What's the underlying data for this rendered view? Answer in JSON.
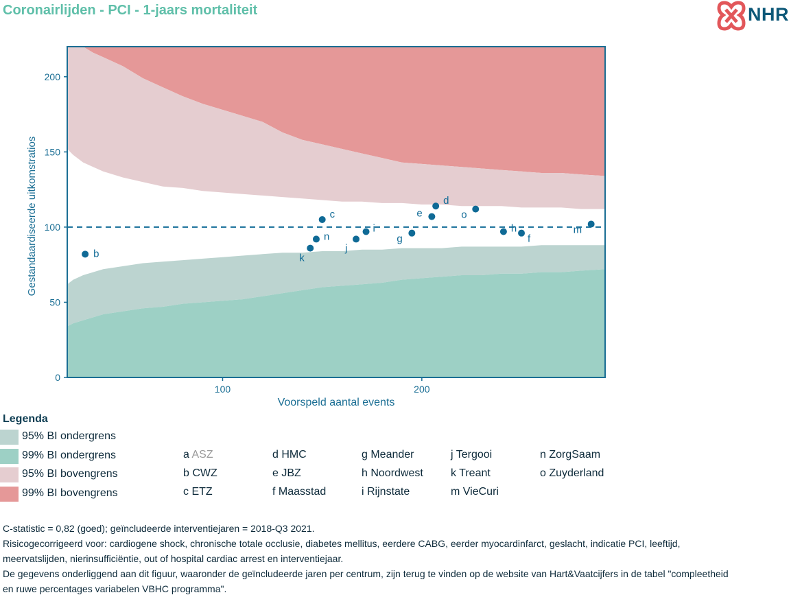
{
  "header": {
    "title": "Coronairlijden - PCI - 1-jaars mortaliteit",
    "logo_text": "NHR"
  },
  "colors": {
    "title": "#5fbfa9",
    "axis": "#1a6e94",
    "point": "#0f6a96",
    "ci95_lower": "#bcd4d0",
    "ci99_lower": "#9dd0c5",
    "ci95_upper": "#e5cdd0",
    "ci99_upper": "#e59898"
  },
  "chart_data": {
    "type": "scatter",
    "xlabel": "Voorspeld aantal events",
    "ylabel": "Gestandaardiseerde uitkomstratios",
    "xlim": [
      22,
      292
    ],
    "ylim": [
      0,
      220
    ],
    "xticks": [
      100,
      200
    ],
    "yticks": [
      0,
      50,
      100,
      150,
      200
    ],
    "reference_line": 100,
    "grid": false,
    "points": [
      {
        "label": "b",
        "x": 31,
        "y": 82
      },
      {
        "label": "k",
        "x": 144,
        "y": 86
      },
      {
        "label": "n",
        "x": 147,
        "y": 92
      },
      {
        "label": "c",
        "x": 150,
        "y": 105
      },
      {
        "label": "j",
        "x": 167,
        "y": 92
      },
      {
        "label": "i",
        "x": 172,
        "y": 97
      },
      {
        "label": "g",
        "x": 195,
        "y": 96
      },
      {
        "label": "e",
        "x": 205,
        "y": 107
      },
      {
        "label": "d",
        "x": 207,
        "y": 114
      },
      {
        "label": "o",
        "x": 227,
        "y": 112
      },
      {
        "label": "h",
        "x": 241,
        "y": 97
      },
      {
        "label": "f",
        "x": 250,
        "y": 96
      },
      {
        "label": "m",
        "x": 285,
        "y": 102
      }
    ],
    "bands": {
      "x": [
        22,
        25,
        30,
        35,
        40,
        50,
        60,
        70,
        80,
        90,
        100,
        110,
        120,
        130,
        140,
        150,
        160,
        170,
        180,
        190,
        200,
        210,
        220,
        230,
        240,
        250,
        260,
        270,
        280,
        292
      ],
      "upper_99": [
        220,
        220,
        220,
        216,
        213,
        207,
        199,
        193,
        187,
        182,
        178,
        174,
        170,
        163,
        158,
        155,
        152,
        149,
        146,
        143,
        142,
        141,
        140,
        139,
        138,
        137,
        136,
        136,
        135,
        134
      ],
      "upper_95": [
        152,
        148,
        143,
        140,
        137,
        133,
        130,
        127,
        126,
        124,
        123,
        122,
        121,
        120,
        119,
        118,
        117,
        117,
        116,
        116,
        115,
        115,
        114,
        114,
        114,
        113,
        113,
        113,
        112,
        112
      ],
      "lower_95": [
        62,
        65,
        68,
        70,
        72,
        74,
        76,
        77,
        78,
        79,
        80,
        81,
        82,
        83,
        83,
        84,
        84,
        85,
        85,
        86,
        86,
        86,
        87,
        87,
        87,
        87,
        88,
        88,
        88,
        88
      ],
      "lower_99": [
        34,
        36,
        38,
        40,
        42,
        44,
        46,
        47,
        49,
        50,
        51,
        52,
        54,
        56,
        58,
        60,
        61,
        62,
        63,
        65,
        66,
        67,
        68,
        68,
        69,
        69,
        70,
        70,
        71,
        72
      ]
    }
  },
  "legend": {
    "title": "Legenda",
    "items": [
      {
        "label": "95% BI ondergrens",
        "color": "#bcd4d0"
      },
      {
        "label": "99% BI ondergrens",
        "color": "#9dd0c5"
      },
      {
        "label": "95% BI bovengrens",
        "color": "#e5cdd0"
      },
      {
        "label": "99% BI bovengrens",
        "color": "#e59898"
      }
    ]
  },
  "centers": [
    {
      "letter": "a",
      "name": "ASZ",
      "muted": true
    },
    {
      "letter": "b",
      "name": "CWZ"
    },
    {
      "letter": "c",
      "name": "ETZ"
    },
    {
      "letter": "d",
      "name": "HMC"
    },
    {
      "letter": "e",
      "name": "JBZ"
    },
    {
      "letter": "f",
      "name": "Maasstad"
    },
    {
      "letter": "g",
      "name": "Meander"
    },
    {
      "letter": "h",
      "name": "Noordwest"
    },
    {
      "letter": "i",
      "name": "Rijnstate"
    },
    {
      "letter": "j",
      "name": "Tergooi"
    },
    {
      "letter": "k",
      "name": "Treant"
    },
    {
      "letter": "m",
      "name": "VieCuri"
    },
    {
      "letter": "n",
      "name": "ZorgSaam"
    },
    {
      "letter": "o",
      "name": "Zuyderland"
    }
  ],
  "footer": {
    "line1": "C-statistic = 0,82 (goed); geïncludeerde interventiejaren = 2018-Q3 2021.",
    "line2": "Risicogecorrigeerd voor: cardiogene shock, chronische totale occlusie, diabetes mellitus, eerdere CABG, eerder myocardinfarct, geslacht, indicatie PCI, leeftijd,",
    "line3": "meervatslijden, nierinsufficiëntie, out of hospital cardiac arrest en interventiejaar.",
    "line4": "De gegevens onderliggend aan dit figuur, waaronder de geïncludeerde jaren per centrum, zijn terug te vinden op de website van Hart&Vaatcijfers in de tabel \"compleetheid",
    "line5": "en ruwe percentages variabelen VBHC programma\"."
  }
}
